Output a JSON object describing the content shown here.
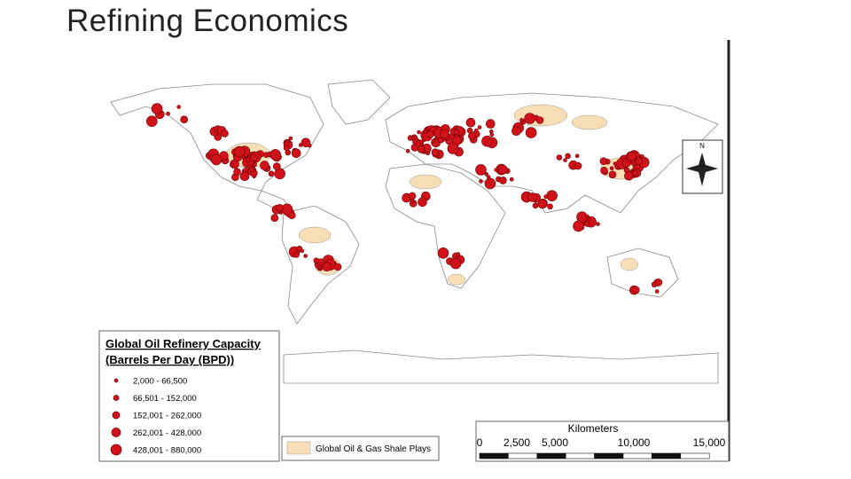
{
  "header": {
    "title": "Refining Economics"
  },
  "legend": {
    "title_lines": [
      "Global Oil Refinery Capacity",
      "(Barrels Per Day (BPD))"
    ],
    "items": [
      "2,000 - 66,500",
      "66,501 - 152,000",
      "152,001 - 262,000",
      "262,001 - 428,000",
      "428,001 - 880,000"
    ]
  },
  "shale_legend": {
    "label": "Global Oil & Gas Shale Plays"
  },
  "scale_bar": {
    "title": "Kilometers",
    "labels": [
      "0",
      "2,500",
      "5,000",
      "10,000",
      "15,000"
    ]
  },
  "compass": {
    "label": "N"
  }
}
